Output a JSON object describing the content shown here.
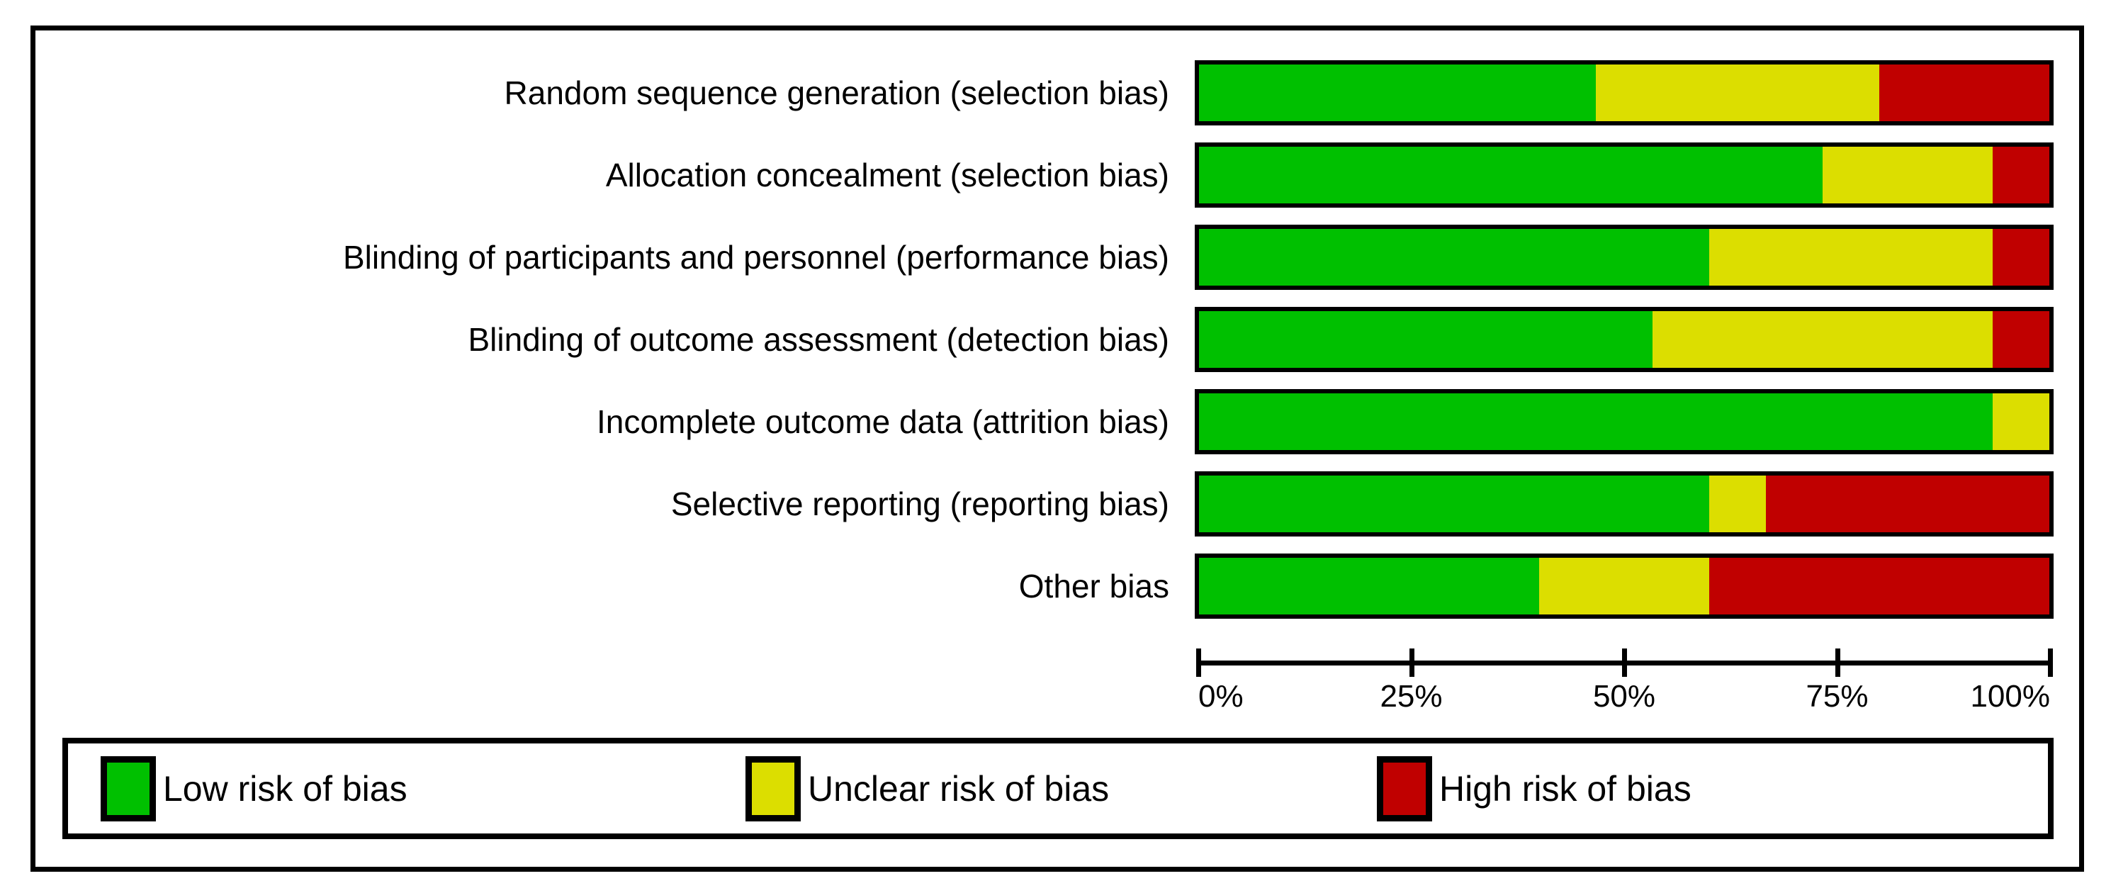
{
  "chart_data": {
    "type": "bar",
    "stacked": true,
    "orientation": "horizontal",
    "categories": [
      "Random sequence generation (selection bias)",
      "Allocation concealment (selection bias)",
      "Blinding of participants and personnel (performance bias)",
      "Blinding of outcome assessment (detection bias)",
      "Incomplete outcome data (attrition bias)",
      "Selective reporting (reporting bias)",
      "Other bias"
    ],
    "series": [
      {
        "name": "Low risk of bias",
        "color": "#00C000",
        "values_pct": [
          46.7,
          73.3,
          60,
          53.3,
          93.3,
          60,
          40
        ]
      },
      {
        "name": "Unclear risk of bias",
        "color": "#DCDE00",
        "values_pct": [
          33.3,
          20,
          33.3,
          40,
          6.7,
          6.7,
          20
        ]
      },
      {
        "name": "High risk of bias",
        "color": "#C00000",
        "values_pct": [
          20,
          6.7,
          6.7,
          6.7,
          0,
          33.3,
          40
        ]
      }
    ],
    "x_axis": {
      "range": [
        0,
        100
      ],
      "tick_labels": [
        "0%",
        "25%",
        "50%",
        "75%",
        "100%"
      ],
      "tick_values": [
        0,
        25,
        50,
        75,
        100
      ]
    },
    "legend": {
      "position": "bottom",
      "entries": [
        "Low risk of bias",
        "Unclear risk of bias",
        "High risk of bias"
      ]
    }
  }
}
